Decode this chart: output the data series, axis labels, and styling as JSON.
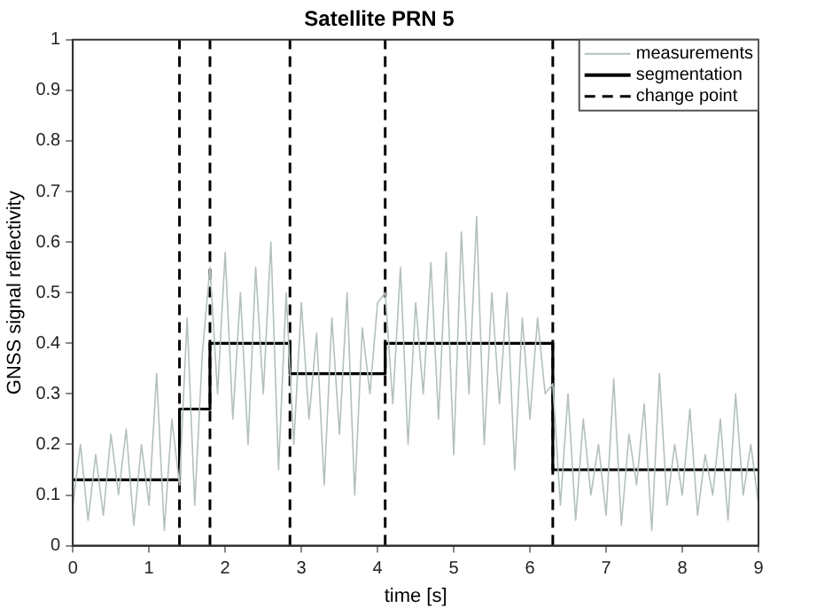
{
  "chart_data": {
    "type": "line",
    "title": "Satellite PRN 5",
    "xlabel": "time [s]",
    "ylabel": "GNSS signal reflectivity",
    "xlim": [
      0,
      9
    ],
    "xticks": [
      0,
      1,
      2,
      3,
      4,
      5,
      6,
      7,
      8,
      9
    ],
    "ylim": [
      0,
      1
    ],
    "yticks": [
      0,
      0.1,
      0.2,
      0.3,
      0.4,
      0.5,
      0.6,
      0.7,
      0.8,
      0.9,
      1
    ],
    "grid": false,
    "legend": "top right",
    "series": [
      {
        "name": "measurements",
        "type": "line",
        "color": "#b4bfbf",
        "x": [
          0,
          0.1,
          0.2,
          0.3,
          0.4,
          0.5,
          0.6,
          0.7,
          0.8,
          0.9,
          1.0,
          1.1,
          1.2,
          1.3,
          1.4,
          1.5,
          1.6,
          1.7,
          1.8,
          1.9,
          2.0,
          2.1,
          2.2,
          2.3,
          2.4,
          2.5,
          2.6,
          2.7,
          2.8,
          2.9,
          3.0,
          3.1,
          3.2,
          3.3,
          3.4,
          3.5,
          3.6,
          3.7,
          3.8,
          3.9,
          4.0,
          4.1,
          4.2,
          4.3,
          4.4,
          4.5,
          4.6,
          4.7,
          4.8,
          4.9,
          5.0,
          5.1,
          5.2,
          5.3,
          5.4,
          5.5,
          5.6,
          5.7,
          5.8,
          5.9,
          6.0,
          6.1,
          6.2,
          6.3,
          6.4,
          6.5,
          6.6,
          6.7,
          6.8,
          6.9,
          7.0,
          7.1,
          7.2,
          7.3,
          7.4,
          7.5,
          7.6,
          7.7,
          7.8,
          7.9,
          8.0,
          8.1,
          8.2,
          8.3,
          8.4,
          8.5,
          8.6,
          8.7,
          8.8,
          8.9,
          9.0
        ],
        "values": [
          0.08,
          0.2,
          0.05,
          0.18,
          0.06,
          0.22,
          0.1,
          0.23,
          0.04,
          0.2,
          0.08,
          0.34,
          0.03,
          0.25,
          0.12,
          0.45,
          0.08,
          0.38,
          0.55,
          0.3,
          0.58,
          0.25,
          0.5,
          0.2,
          0.55,
          0.3,
          0.6,
          0.15,
          0.5,
          0.2,
          0.48,
          0.25,
          0.42,
          0.12,
          0.45,
          0.22,
          0.5,
          0.1,
          0.43,
          0.3,
          0.48,
          0.5,
          0.28,
          0.55,
          0.2,
          0.48,
          0.3,
          0.56,
          0.25,
          0.58,
          0.18,
          0.62,
          0.3,
          0.65,
          0.2,
          0.5,
          0.28,
          0.5,
          0.15,
          0.45,
          0.25,
          0.45,
          0.3,
          0.32,
          0.08,
          0.3,
          0.05,
          0.25,
          0.1,
          0.2,
          0.06,
          0.33,
          0.04,
          0.22,
          0.12,
          0.28,
          0.03,
          0.34,
          0.08,
          0.2,
          0.1,
          0.27,
          0.06,
          0.18,
          0.1,
          0.25,
          0.05,
          0.3,
          0.1,
          0.2,
          0.08
        ]
      },
      {
        "name": "segmentation",
        "type": "step",
        "color": "#000000",
        "x": [
          0,
          1.4,
          1.8,
          2.85,
          4.1,
          6.3,
          9
        ],
        "values": [
          0.13,
          0.27,
          0.4,
          0.34,
          0.4,
          0.15,
          0.15
        ]
      },
      {
        "name": "change point",
        "type": "line",
        "line_style": "dashed",
        "color": "#000000",
        "x": [
          1.4,
          1.4,
          null,
          1.8,
          1.8,
          null,
          2.85,
          2.85,
          null,
          4.1,
          4.1,
          null,
          6.3,
          6.3
        ],
        "values": [
          0,
          1,
          null,
          0,
          1,
          null,
          0,
          1,
          null,
          0,
          1,
          null,
          0,
          1
        ]
      }
    ]
  }
}
